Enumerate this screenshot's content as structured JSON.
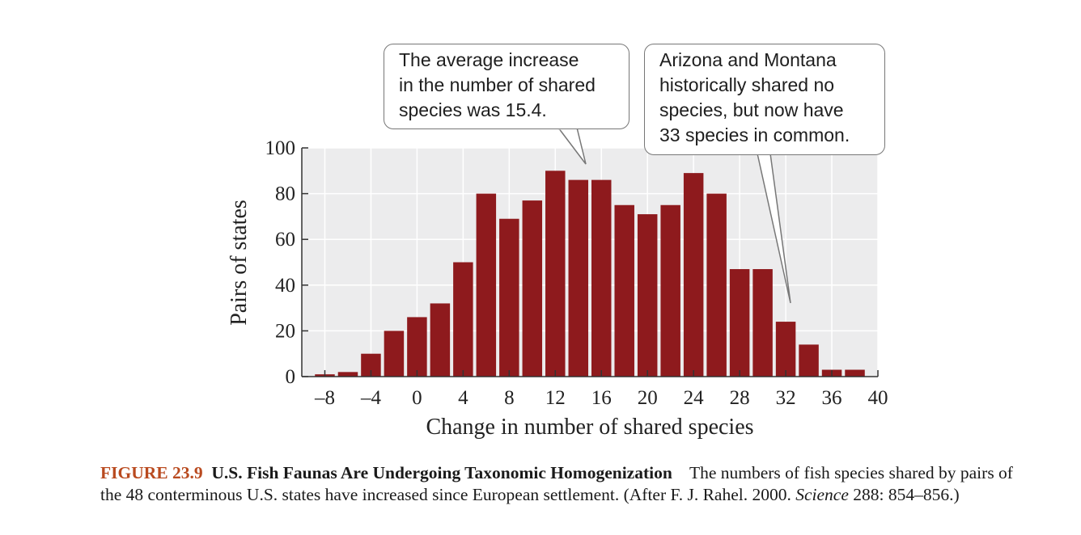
{
  "chart_data": {
    "type": "bar",
    "x": [
      -8,
      -6,
      -4,
      -2,
      0,
      2,
      4,
      6,
      8,
      10,
      12,
      14,
      16,
      18,
      20,
      22,
      24,
      26,
      28,
      30,
      32,
      34,
      36,
      38
    ],
    "values": [
      1,
      2,
      10,
      20,
      26,
      32,
      50,
      80,
      69,
      77,
      90,
      86,
      86,
      75,
      71,
      75,
      89,
      80,
      47,
      47,
      24,
      14,
      3,
      3
    ],
    "xlabel": "Change in number of shared species",
    "ylabel": "Pairs of states",
    "xlim": [
      -10,
      40
    ],
    "ylim": [
      0,
      100
    ],
    "xticks": [
      -8,
      -4,
      0,
      4,
      8,
      12,
      16,
      20,
      24,
      28,
      32,
      36,
      40
    ],
    "xtick_labels": [
      "–8",
      "–4",
      "0",
      "4",
      "8",
      "12",
      "16",
      "20",
      "24",
      "28",
      "32",
      "36",
      "40"
    ],
    "yticks": [
      0,
      20,
      40,
      60,
      80,
      100
    ],
    "ytick_labels": [
      "0",
      "20",
      "40",
      "60",
      "80",
      "100"
    ],
    "grid": true,
    "colors": {
      "bar": "#8e1a1d",
      "plot_bg": "#ececed",
      "grid": "#ffffff"
    },
    "annotations": [
      {
        "lines": [
          "The average increase",
          "in the number of shared",
          "species was 15.4."
        ],
        "points_to_x": 15.4
      },
      {
        "lines": [
          "Arizona and Montana",
          "historically shared no",
          "species, but now have",
          "33 species in common."
        ],
        "points_to_x": 33
      }
    ]
  },
  "caption": {
    "figure_number": "FIGURE 23.9",
    "title": "U.S. Fish Faunas Are Undergoing Taxonomic Homogenization",
    "text": "The numbers of fish species shared by pairs of the 48 conterminous U.S. states have increased since European settlement. (After F. J. Rahel. 2000.",
    "journal": "Science",
    "citation": "288: 854–856.)"
  }
}
